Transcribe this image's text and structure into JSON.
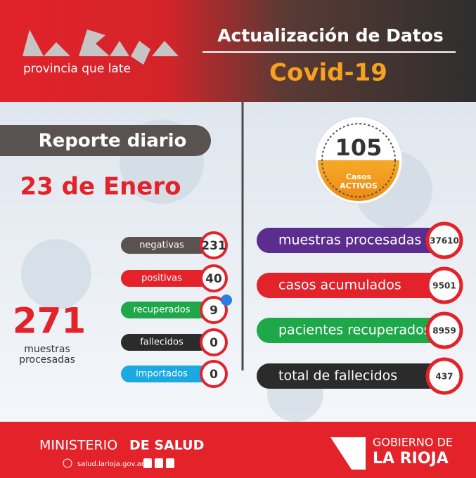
{
  "header": {
    "logo_tagline": "provincia que late",
    "title": "Actualización de Datos",
    "subtitle": "Covid-19"
  },
  "daily_report": {
    "heading": "Reporte diario",
    "date": "23 de Enero",
    "items": [
      {
        "label": "negativas",
        "value": 231
      },
      {
        "label": "positivas",
        "value": 40
      },
      {
        "label": "recuperados",
        "value": 9
      },
      {
        "label": "fallecidos",
        "value": 0
      },
      {
        "label": "importados",
        "value": 0
      }
    ],
    "total_tests": {
      "value": 271,
      "label_line1": "muestras",
      "label_line2": "procesadas"
    }
  },
  "active_cases": {
    "value": 105,
    "label_line1": "Casos",
    "label_line2": "ACTIVOS"
  },
  "totals": [
    {
      "label": "muestras procesadas",
      "value": 37610
    },
    {
      "label": "casos acumulados",
      "value": 9501
    },
    {
      "label": "pacientes recuperados",
      "value": 8959
    },
    {
      "label": "total de fallecidos",
      "value": 437
    }
  ],
  "footer": {
    "ministry": "MINISTERIO",
    "ministry_bold": "DE SALUD",
    "website": "salud.larioja.gov.ar",
    "government_line1": "GOBIERNO DE",
    "government_line2": "LA RIOJA"
  }
}
